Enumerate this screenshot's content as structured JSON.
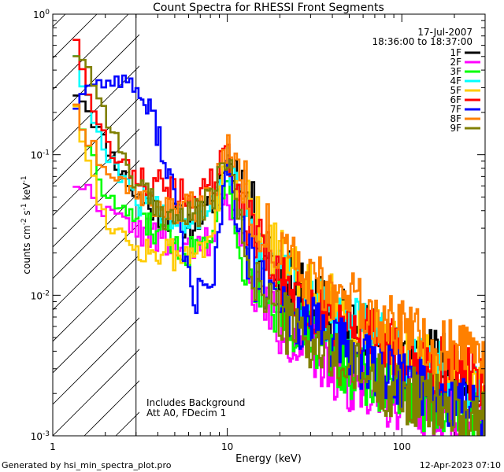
{
  "footer": {
    "generated_by": "Generated by hsi_min_spectra_plot.pro",
    "timestamp": "12-Apr-2023 07:10"
  },
  "chart_data": {
    "type": "line",
    "title": "Count Spectra for RHESSI Front Segments",
    "xlabel": "Energy (keV)",
    "ylabel": "counts cm^-2 s^-1 keV^-1",
    "ylabel_parts": {
      "main": "counts cm",
      "e1": "-2",
      "mid1": " s",
      "e2": "-1",
      "mid2": " keV",
      "e3": "-1"
    },
    "xscale": "log",
    "yscale": "log",
    "xlim": [
      1,
      300
    ],
    "ylim": [
      0.001,
      1
    ],
    "x_ticks": [
      {
        "value": 1,
        "label": "1"
      },
      {
        "value": 10,
        "label": "10"
      },
      {
        "value": 100,
        "label": "100"
      }
    ],
    "y_ticks": [
      {
        "value": 1,
        "base": "10",
        "exp": "0"
      },
      {
        "value": 0.1,
        "base": "10",
        "exp": "-1"
      },
      {
        "value": 0.01,
        "base": "10",
        "exp": "-2"
      },
      {
        "value": 0.001,
        "base": "10",
        "exp": "-3"
      }
    ],
    "date": "17-Jul-2007",
    "time_range": "18:36:00 to 18:37:00",
    "shaded_region": {
      "x_from": 1,
      "x_to": 3,
      "pattern": "diagonal-hatch"
    },
    "annotations": [
      "Includes Background",
      "Att A0, FDecim 1"
    ],
    "legend_position": "top-right",
    "series": [
      {
        "name": "1F",
        "color": "#000000",
        "seed": 11,
        "x": [
          1.3,
          1.5,
          2.0,
          3.0,
          4.0,
          6.0,
          8.0,
          10.0,
          12.0,
          15.0,
          20.0,
          30.0,
          50.0,
          70.0,
          100.0,
          150.0,
          200.0,
          300.0
        ],
        "y": [
          0.3,
          0.25,
          0.12,
          0.05,
          0.04,
          0.032,
          0.04,
          0.095,
          0.07,
          0.03,
          0.015,
          0.009,
          0.007,
          0.005,
          0.004,
          0.0035,
          0.003,
          0.0025
        ]
      },
      {
        "name": "2F",
        "color": "#ff00ff",
        "seed": 22,
        "x": [
          1.3,
          1.5,
          2.0,
          3.0,
          4.0,
          6.0,
          8.0,
          10.0,
          12.0,
          15.0,
          20.0,
          30.0,
          50.0,
          70.0,
          100.0,
          150.0,
          200.0,
          300.0
        ],
        "y": [
          0.065,
          0.06,
          0.04,
          0.03,
          0.025,
          0.02,
          0.025,
          0.06,
          0.02,
          0.01,
          0.006,
          0.004,
          0.0025,
          0.002,
          0.0018,
          0.0015,
          0.0013,
          0.0011
        ]
      },
      {
        "name": "3F",
        "color": "#00ff00",
        "seed": 33,
        "x": [
          1.3,
          1.5,
          2.0,
          3.0,
          4.0,
          6.0,
          8.0,
          10.0,
          12.0,
          15.0,
          20.0,
          30.0,
          50.0,
          70.0,
          100.0,
          150.0,
          200.0,
          300.0
        ],
        "y": [
          0.3,
          0.15,
          0.05,
          0.035,
          0.028,
          0.02,
          0.03,
          0.07,
          0.02,
          0.012,
          0.008,
          0.005,
          0.003,
          0.0025,
          0.002,
          0.0017,
          0.0015,
          0.0012
        ]
      },
      {
        "name": "4F",
        "color": "#00ffff",
        "seed": 44,
        "x": [
          1.3,
          1.5,
          2.0,
          3.0,
          4.0,
          6.0,
          8.0,
          10.0,
          12.0,
          15.0,
          20.0,
          30.0,
          50.0,
          70.0,
          100.0,
          150.0,
          200.0,
          300.0
        ],
        "y": [
          0.7,
          0.3,
          0.1,
          0.05,
          0.04,
          0.035,
          0.045,
          0.09,
          0.045,
          0.022,
          0.015,
          0.009,
          0.006,
          0.005,
          0.004,
          0.003,
          0.0025,
          0.002
        ]
      },
      {
        "name": "5F",
        "color": "#ffcc00",
        "seed": 55,
        "x": [
          1.3,
          1.5,
          2.0,
          3.0,
          4.0,
          6.0,
          8.0,
          10.0,
          12.0,
          15.0,
          20.0,
          30.0,
          50.0,
          70.0,
          100.0,
          150.0,
          200.0,
          300.0
        ],
        "y": [
          0.32,
          0.12,
          0.035,
          0.022,
          0.02,
          0.018,
          0.028,
          0.08,
          0.05,
          0.03,
          0.02,
          0.012,
          0.007,
          0.005,
          0.004,
          0.003,
          0.0025,
          0.002
        ]
      },
      {
        "name": "6F",
        "color": "#ff0000",
        "seed": 66,
        "x": [
          1.3,
          1.5,
          2.0,
          3.0,
          4.0,
          6.0,
          8.0,
          10.0,
          12.0,
          15.0,
          20.0,
          30.0,
          50.0,
          70.0,
          100.0,
          150.0,
          200.0,
          300.0
        ],
        "y": [
          0.9,
          0.4,
          0.12,
          0.07,
          0.06,
          0.05,
          0.06,
          0.1,
          0.045,
          0.025,
          0.012,
          0.008,
          0.006,
          0.005,
          0.004,
          0.0033,
          0.003,
          0.0025
        ]
      },
      {
        "name": "7F",
        "color": "#0000ff",
        "seed": 77,
        "x": [
          1.3,
          1.5,
          2.0,
          2.5,
          3.0,
          4.0,
          5.0,
          6.0,
          6.5,
          7.0,
          8.0,
          9.0,
          10.0,
          12.0,
          15.0,
          20.0,
          30.0,
          50.0,
          70.0,
          100.0,
          150.0,
          200.0,
          300.0
        ],
        "y": [
          0.2,
          0.3,
          0.33,
          0.35,
          0.3,
          0.15,
          0.05,
          0.015,
          0.008,
          0.012,
          0.01,
          0.03,
          0.085,
          0.025,
          0.012,
          0.008,
          0.006,
          0.004,
          0.003,
          0.0025,
          0.002,
          0.0018,
          0.0015
        ]
      },
      {
        "name": "8F",
        "color": "#ff8000",
        "seed": 88,
        "x": [
          1.3,
          1.5,
          2.0,
          3.0,
          4.0,
          6.0,
          8.0,
          10.0,
          12.0,
          15.0,
          20.0,
          30.0,
          50.0,
          70.0,
          100.0,
          150.0,
          200.0,
          300.0
        ],
        "y": [
          0.3,
          0.15,
          0.08,
          0.055,
          0.045,
          0.04,
          0.05,
          0.12,
          0.07,
          0.035,
          0.02,
          0.013,
          0.009,
          0.007,
          0.0055,
          0.0045,
          0.004,
          0.0035
        ]
      },
      {
        "name": "9F",
        "color": "#808000",
        "seed": 99,
        "x": [
          1.3,
          1.5,
          2.0,
          3.0,
          4.0,
          6.0,
          8.0,
          10.0,
          12.0,
          15.0,
          20.0,
          30.0,
          50.0,
          70.0,
          100.0,
          150.0,
          200.0,
          300.0
        ],
        "y": [
          0.55,
          0.5,
          0.2,
          0.06,
          0.04,
          0.035,
          0.045,
          0.1,
          0.03,
          0.012,
          0.007,
          0.0045,
          0.003,
          0.0025,
          0.002,
          0.0017,
          0.0015,
          0.0013
        ]
      }
    ]
  }
}
